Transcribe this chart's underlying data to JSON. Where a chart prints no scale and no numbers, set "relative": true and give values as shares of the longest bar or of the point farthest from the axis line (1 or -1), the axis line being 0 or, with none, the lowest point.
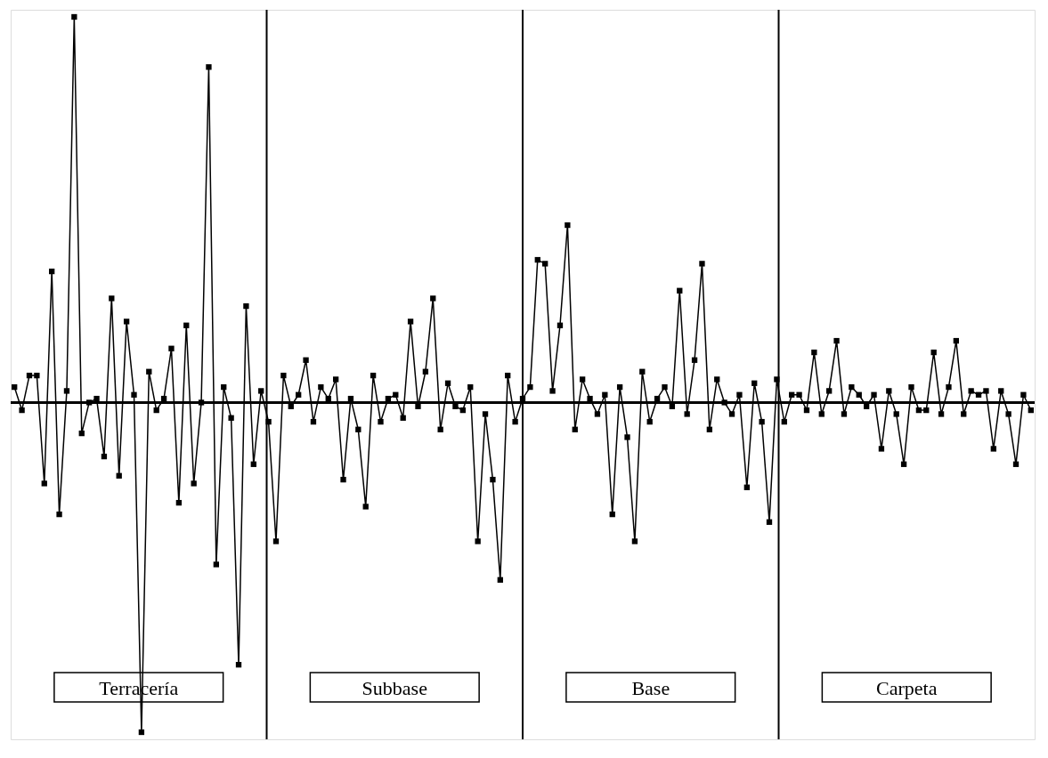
{
  "chart_data": {
    "type": "line",
    "relative": true,
    "marker": "square",
    "line_style": "solid",
    "grid": false,
    "categories": [
      null,
      null,
      null,
      null,
      null,
      null,
      null,
      null,
      null,
      null,
      null,
      null,
      null,
      null,
      null,
      null,
      null,
      null,
      null,
      null,
      null,
      null,
      null,
      null,
      null,
      null,
      null,
      null,
      null,
      null,
      null,
      null,
      null,
      null,
      null,
      null,
      null,
      null,
      null,
      null,
      null,
      null,
      null,
      null,
      null,
      null,
      null,
      null,
      null,
      null,
      null,
      null,
      null,
      null,
      null,
      null,
      null,
      null,
      null,
      null,
      null,
      null,
      null,
      null,
      null,
      null,
      null,
      null,
      null,
      null,
      null,
      null,
      null,
      null,
      null,
      null,
      null,
      null,
      null,
      null,
      null,
      null,
      null,
      null,
      null,
      null,
      null,
      null,
      null,
      null,
      null,
      null,
      null,
      null,
      null,
      null,
      null,
      null,
      null,
      null,
      null,
      null,
      null,
      null,
      null,
      null,
      null,
      null,
      null,
      null,
      null,
      null,
      null,
      null,
      null,
      null,
      null,
      null,
      null,
      null,
      null,
      null,
      null,
      null,
      null,
      null,
      null,
      null,
      null,
      null,
      null,
      null,
      null,
      null,
      null,
      null,
      null
    ],
    "series": [
      {
        "color": "#000000",
        "values": [
          0.04,
          -0.02,
          0.07,
          0.07,
          -0.21,
          0.34,
          -0.29,
          0.03,
          1,
          -0.08,
          0,
          0.01,
          -0.14,
          0.27,
          -0.19,
          0.21,
          0.02,
          -0.855,
          0.08,
          -0.02,
          0.01,
          0.14,
          -0.26,
          0.2,
          -0.21,
          0,
          0.87,
          -0.42,
          0.04,
          -0.04,
          -0.68,
          0.25,
          -0.16,
          0.03,
          -0.05,
          -0.36,
          0.07,
          -0.01,
          0.02,
          0.11,
          -0.05,
          0.04,
          0.01,
          0.06,
          -0.2,
          0.01,
          -0.07,
          -0.27,
          0.07,
          -0.05,
          0.01,
          0.02,
          -0.04,
          0.21,
          -0.01,
          0.08,
          0.27,
          -0.07,
          0.05,
          -0.01,
          -0.02,
          0.04,
          -0.36,
          -0.03,
          -0.2,
          -0.46,
          0.07,
          -0.05,
          0.01,
          0.04,
          0.37,
          0.36,
          0.03,
          0.2,
          0.46,
          -0.07,
          0.06,
          0.01,
          -0.03,
          0.02,
          -0.29,
          0.04,
          -0.09,
          -0.36,
          0.08,
          -0.05,
          0.01,
          0.04,
          -0.01,
          0.29,
          -0.03,
          0.11,
          0.36,
          -0.07,
          0.06,
          0,
          -0.03,
          0.02,
          -0.22,
          0.05,
          -0.05,
          -0.31,
          0.06,
          -0.05,
          0.02,
          0.02,
          -0.02,
          0.13,
          -0.03,
          0.03,
          0.16,
          -0.03,
          0.04,
          0.02,
          -0.01,
          0.02,
          -0.12,
          0.03,
          -0.03,
          -0.16,
          0.04,
          -0.02,
          -0.02,
          0.13,
          -0.03,
          0.04,
          0.16,
          -0.03,
          0.03,
          0.02,
          0.03,
          -0.12,
          0.03,
          -0.03,
          -0.16,
          0.02,
          -0.02
        ]
      }
    ],
    "annotations": [
      "Terracería",
      "Subbase",
      "Base",
      "Carpeta"
    ]
  }
}
